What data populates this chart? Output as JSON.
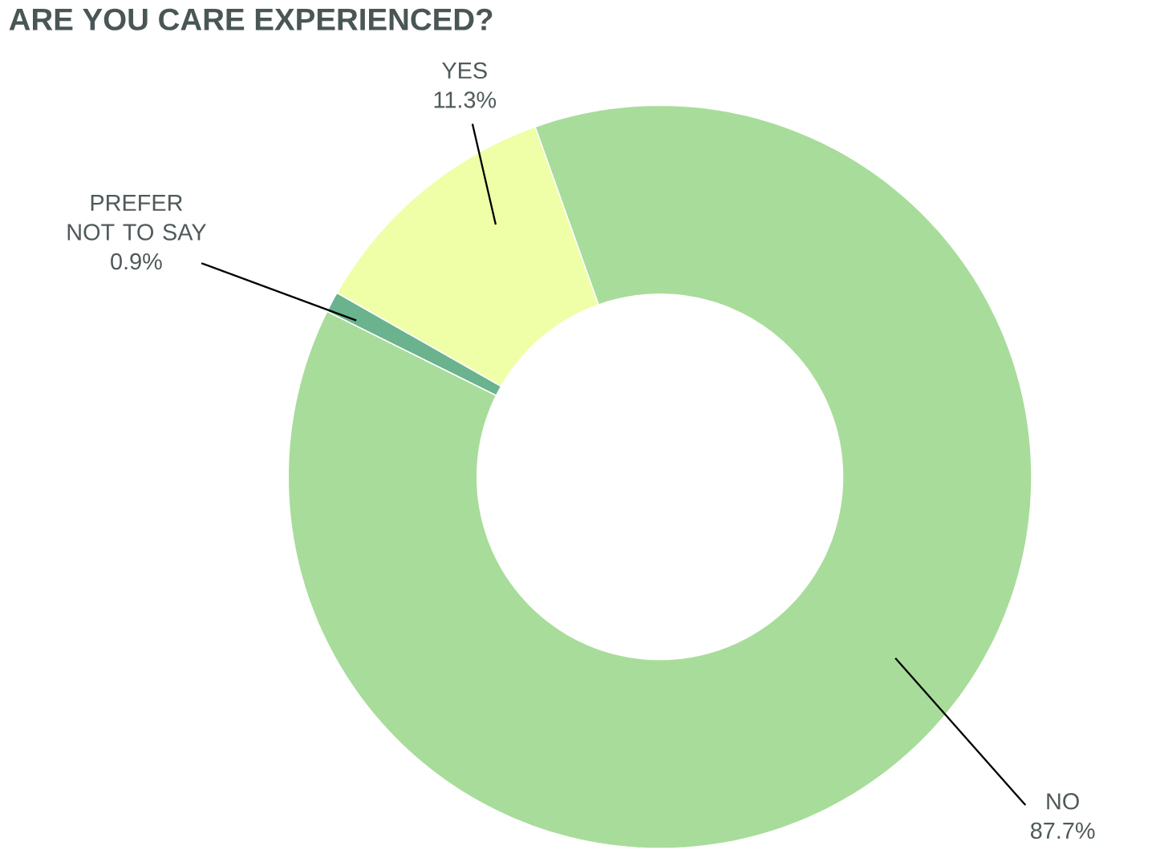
{
  "chart_data": {
    "type": "donut",
    "title": "ARE YOU CARE EXPERIENCED?",
    "categories": [
      "YES",
      "PREFER NOT TO SAY",
      "NO"
    ],
    "values": [
      11.3,
      0.9,
      87.7
    ],
    "value_labels": [
      "11.3%",
      "0.9%",
      "87.7%"
    ],
    "colors": [
      "#eeffa8",
      "#6ab38e",
      "#a8dc9a"
    ]
  }
}
